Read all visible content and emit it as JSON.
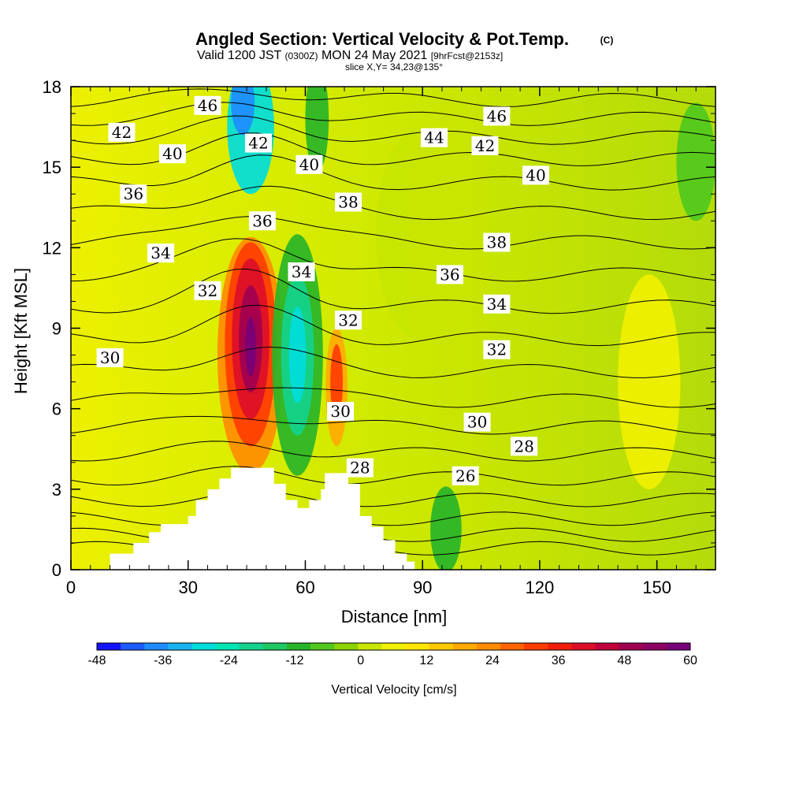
{
  "title": {
    "main": "Angled Section: Vertical Velocity & Pot.Temp.",
    "copyright": "(C)",
    "valid_prefix": "Valid 1200 JST",
    "valid_utc": "(0300Z)",
    "valid_date": "MON 24 May 2021",
    "forecast": "[9hrFcst@2153z]",
    "slice": "slice X,Y= 34,23@135°"
  },
  "chart_data": {
    "type": "heatmap",
    "xlabel": "Distance [nm]",
    "ylabel": "Height [Kft MSL]",
    "xlim": [
      0,
      165
    ],
    "ylim": [
      0,
      18
    ],
    "xticks": [
      0,
      30,
      60,
      90,
      120,
      150
    ],
    "yticks": [
      0,
      3,
      6,
      9,
      12,
      15,
      18
    ],
    "colorbar": {
      "label": "Vertical Velocity [cm/s]",
      "range": [
        -48,
        60
      ],
      "ticks": [
        -48,
        -36,
        -24,
        -12,
        0,
        12,
        24,
        36,
        48,
        60
      ],
      "colors": [
        "#1414ff",
        "#1e5aff",
        "#1e8cff",
        "#19b4f0",
        "#00dcdc",
        "#00e6b4",
        "#14d28c",
        "#1ec864",
        "#28b428",
        "#50c81e",
        "#8cd200",
        "#c8e600",
        "#f0f000",
        "#ffe600",
        "#ffc800",
        "#ffaa00",
        "#ff8c00",
        "#ff6400",
        "#ff3c00",
        "#f01e0a",
        "#dc0f28",
        "#c0003c",
        "#a00050",
        "#8c0064",
        "#780078"
      ]
    },
    "velocity_features": [
      {
        "kind": "updraft",
        "x": 46,
        "y": 8.5,
        "peak": 58
      },
      {
        "kind": "updraft",
        "x": 68,
        "y": 7.0,
        "peak": 30
      },
      {
        "kind": "downdraft",
        "x": 58,
        "y": 8.0,
        "peak": -24
      },
      {
        "kind": "downdraft",
        "x": 46,
        "y": 16.5,
        "peak": -36
      },
      {
        "kind": "downdraft",
        "x": 63,
        "y": 17.0,
        "peak": -16
      }
    ],
    "terrain": [
      [
        0,
        0
      ],
      [
        10,
        0
      ],
      [
        10,
        0.6
      ],
      [
        16,
        0.6
      ],
      [
        16,
        1.0
      ],
      [
        20,
        1.0
      ],
      [
        20,
        1.4
      ],
      [
        23,
        1.4
      ],
      [
        23,
        1.7
      ],
      [
        30,
        1.7
      ],
      [
        30,
        2.0
      ],
      [
        32,
        2.0
      ],
      [
        32,
        2.6
      ],
      [
        35,
        2.6
      ],
      [
        35,
        3.0
      ],
      [
        38,
        3.0
      ],
      [
        38,
        3.4
      ],
      [
        41,
        3.4
      ],
      [
        41,
        3.8
      ],
      [
        52,
        3.8
      ],
      [
        52,
        3.2
      ],
      [
        55,
        3.2
      ],
      [
        55,
        2.6
      ],
      [
        58,
        2.6
      ],
      [
        58,
        2.3
      ],
      [
        61,
        2.3
      ],
      [
        61,
        2.6
      ],
      [
        64,
        2.6
      ],
      [
        64,
        3.0
      ],
      [
        65,
        3.0
      ],
      [
        65,
        3.6
      ],
      [
        71,
        3.6
      ],
      [
        71,
        3.2
      ],
      [
        74,
        3.2
      ],
      [
        74,
        2.0
      ],
      [
        77,
        2.0
      ],
      [
        77,
        1.6
      ],
      [
        80,
        1.6
      ],
      [
        80,
        1.1
      ],
      [
        83,
        1.1
      ],
      [
        83,
        0.6
      ],
      [
        86,
        0.6
      ],
      [
        86,
        0.3
      ],
      [
        88,
        0.3
      ],
      [
        88,
        0
      ]
    ],
    "contour_labels": [
      {
        "text": "46",
        "x": 35,
        "y": 17.3
      },
      {
        "text": "42",
        "x": 13,
        "y": 16.3
      },
      {
        "text": "40",
        "x": 26,
        "y": 15.5
      },
      {
        "text": "42",
        "x": 48,
        "y": 15.9
      },
      {
        "text": "40",
        "x": 61,
        "y": 15.1
      },
      {
        "text": "44",
        "x": 93,
        "y": 16.1
      },
      {
        "text": "46",
        "x": 109,
        "y": 16.9
      },
      {
        "text": "42",
        "x": 106,
        "y": 15.8
      },
      {
        "text": "40",
        "x": 119,
        "y": 14.7
      },
      {
        "text": "36",
        "x": 16,
        "y": 14.0
      },
      {
        "text": "38",
        "x": 71,
        "y": 13.7
      },
      {
        "text": "36",
        "x": 49,
        "y": 13.0
      },
      {
        "text": "38",
        "x": 109,
        "y": 12.2
      },
      {
        "text": "34",
        "x": 23,
        "y": 11.8
      },
      {
        "text": "34",
        "x": 59,
        "y": 11.1
      },
      {
        "text": "36",
        "x": 97,
        "y": 11.0
      },
      {
        "text": "32",
        "x": 35,
        "y": 10.4
      },
      {
        "text": "34",
        "x": 109,
        "y": 9.9
      },
      {
        "text": "32",
        "x": 71,
        "y": 9.3
      },
      {
        "text": "32",
        "x": 109,
        "y": 8.2
      },
      {
        "text": "30",
        "x": 10,
        "y": 7.9
      },
      {
        "text": "30",
        "x": 69,
        "y": 5.9
      },
      {
        "text": "30",
        "x": 104,
        "y": 5.5
      },
      {
        "text": "28",
        "x": 116,
        "y": 4.6
      },
      {
        "text": "28",
        "x": 74,
        "y": 3.8
      },
      {
        "text": "26",
        "x": 101,
        "y": 3.5
      }
    ]
  }
}
